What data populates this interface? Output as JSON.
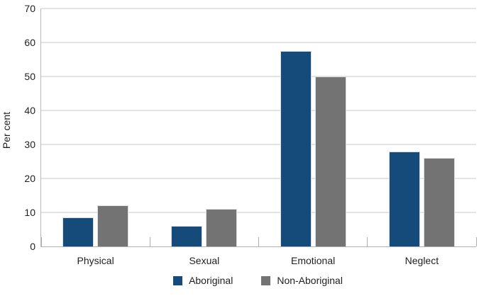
{
  "chart_data": {
    "type": "bar",
    "title": "",
    "xlabel": "",
    "ylabel": "Per cent",
    "categories": [
      "Physical",
      "Sexual",
      "Emotional",
      "Neglect"
    ],
    "series": [
      {
        "name": "Aboriginal",
        "color": "#144b7a",
        "values": [
          8.5,
          6,
          57.5,
          28
        ]
      },
      {
        "name": "Non-Aboriginal",
        "color": "#737373",
        "values": [
          12,
          11,
          50,
          26
        ]
      }
    ],
    "ylim": [
      0,
      70
    ],
    "ytick_step": 10,
    "yticks": [
      0,
      10,
      20,
      30,
      40,
      50,
      60,
      70
    ],
    "grid": "horizontal",
    "legend_position": "bottom"
  }
}
